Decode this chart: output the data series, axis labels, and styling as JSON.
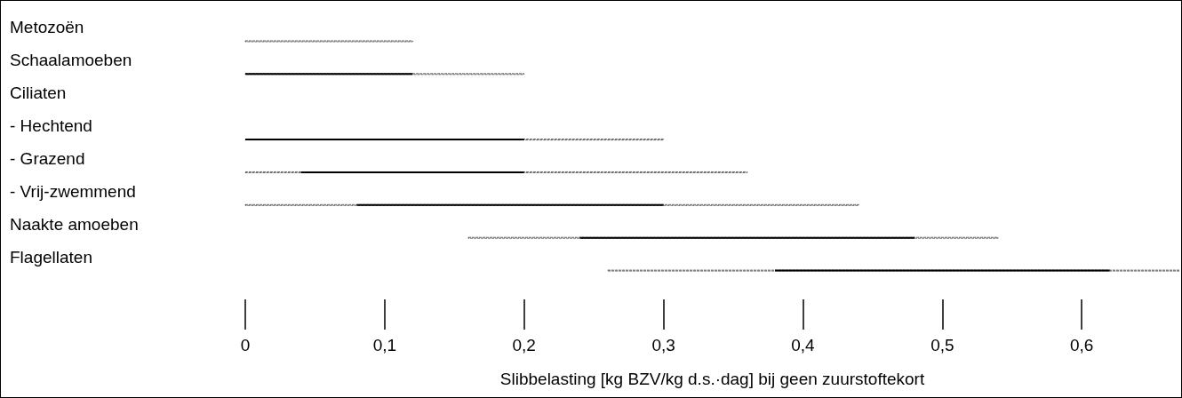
{
  "chart_data": {
    "type": "bar",
    "orientation": "horizontal",
    "xlabel": "Slibbelasting [kg BZV/kg d.s.·dag] bij geen zuurstoftekort",
    "categories": [
      "Metozoën",
      "Schaalamoeben",
      "Ciliaten",
      "- Hechtend",
      "- Grazend",
      "- Vrij-zwemmend",
      "Naakte amoeben",
      "Flagellaten"
    ],
    "xlim": [
      0,
      0.67
    ],
    "xticks": [
      0,
      {
        "value": 0.1,
        "label": "0,1"
      },
      {
        "value": 0.2,
        "label": "0,2"
      },
      {
        "value": 0.3,
        "label": "0,3"
      },
      {
        "value": 0.4,
        "label": "0,4"
      },
      {
        "value": 0.5,
        "label": "0,5"
      },
      {
        "value": 0.6,
        "label": "0,6"
      }
    ],
    "grid": false,
    "series": [
      {
        "color": "#000000",
        "line_style": "dashed",
        "base": [
          0,
          0,
          null,
          0,
          0,
          0,
          0.16,
          0.26
        ],
        "values": [
          0.12,
          0.2,
          null,
          0.3,
          0.36,
          0.44,
          0.38,
          0.41
        ]
      },
      {
        "color": "#000000",
        "line_style": "solid",
        "base": [
          null,
          0,
          null,
          0,
          0.04,
          0.08,
          0.24,
          0.38
        ],
        "values": [
          null,
          0.12,
          null,
          0.2,
          0.16,
          0.22,
          0.24,
          0.24
        ]
      }
    ]
  }
}
